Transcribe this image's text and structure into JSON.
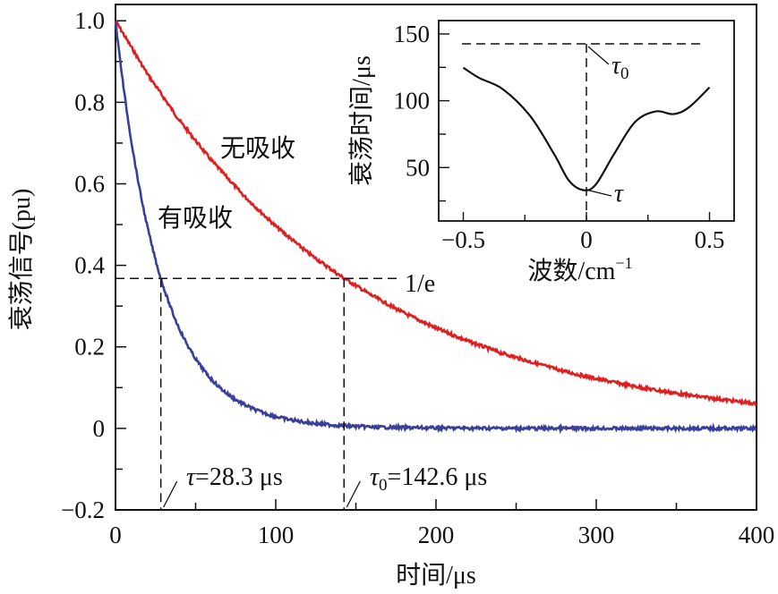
{
  "chart_data": [
    {
      "type": "line",
      "xlabel": "时间/μs",
      "ylabel": "衰荡信号(pu)",
      "xlim": [
        0,
        400
      ],
      "ylim": [
        -0.2,
        1.04
      ],
      "xticks": [
        0,
        100,
        200,
        300,
        400
      ],
      "yticks": [
        -0.2,
        0,
        0.2,
        0.4,
        0.6,
        0.8,
        1.0
      ],
      "ytick_labels": [
        "−0.2",
        "0",
        "0.2",
        "0.4",
        "0.6",
        "0.8",
        "1.0"
      ],
      "grid": false,
      "series": [
        {
          "name": "无吸收",
          "color": "#e02020",
          "x": [
            0,
            20,
            40,
            60,
            80,
            100,
            120,
            140,
            160,
            180,
            200,
            220,
            240,
            260,
            280,
            300,
            320,
            340,
            360,
            380,
            400
          ],
          "y": [
            1,
            0.869,
            0.755,
            0.657,
            0.571,
            0.496,
            0.431,
            0.375,
            0.326,
            0.283,
            0.246,
            0.214,
            0.186,
            0.162,
            0.14,
            0.122,
            0.106,
            0.092,
            0.08,
            0.07,
            0.06
          ]
        },
        {
          "name": "有吸收",
          "color": "#3a3f9a",
          "x": [
            0,
            5,
            10,
            15,
            20,
            25,
            30,
            35,
            40,
            50,
            60,
            70,
            80,
            90,
            100,
            120,
            140,
            160,
            200,
            250,
            300,
            400
          ],
          "y": [
            1,
            0.838,
            0.702,
            0.589,
            0.493,
            0.413,
            0.346,
            0.29,
            0.243,
            0.171,
            0.12,
            0.084,
            0.059,
            0.042,
            0.029,
            0.014,
            0.007,
            0.003,
            0.001,
            0,
            0,
            0
          ]
        }
      ],
      "reference_line": {
        "y": 0.368,
        "label": "1/e"
      },
      "annotations": [
        {
          "x": 28.3,
          "label_symbol": "τ",
          "label_sub": "",
          "label_value": "=28.3 μs"
        },
        {
          "x": 142.6,
          "label_symbol": "τ",
          "label_sub": "0",
          "label_value": "=142.6 μs"
        }
      ]
    },
    {
      "type": "line",
      "xlabel": "波数/cm",
      "xlabel_sup": "−1",
      "ylabel": "衰荡时间/μs",
      "xlim": [
        -0.6,
        0.6
      ],
      "ylim": [
        10,
        160
      ],
      "xticks": [
        -0.5,
        0,
        0.5
      ],
      "xtick_labels": [
        "−0.5",
        "0",
        "0.5"
      ],
      "yticks": [
        50,
        100,
        150
      ],
      "grid": false,
      "series": [
        {
          "color": "#111111",
          "x": [
            -0.5,
            -0.435,
            -0.34,
            -0.229,
            -0.131,
            -0.07,
            -0.01,
            0.039,
            0.112,
            0.197,
            0.281,
            0.354,
            0.416,
            0.5
          ],
          "y": [
            124.7,
            117,
            108.7,
            88.7,
            60,
            40,
            33,
            37.5,
            60,
            84,
            92,
            90,
            95,
            110
          ]
        }
      ],
      "reference_line": {
        "y": 142.6,
        "label_symbol": "τ",
        "label_sub": "0"
      },
      "min_label": "τ"
    }
  ]
}
